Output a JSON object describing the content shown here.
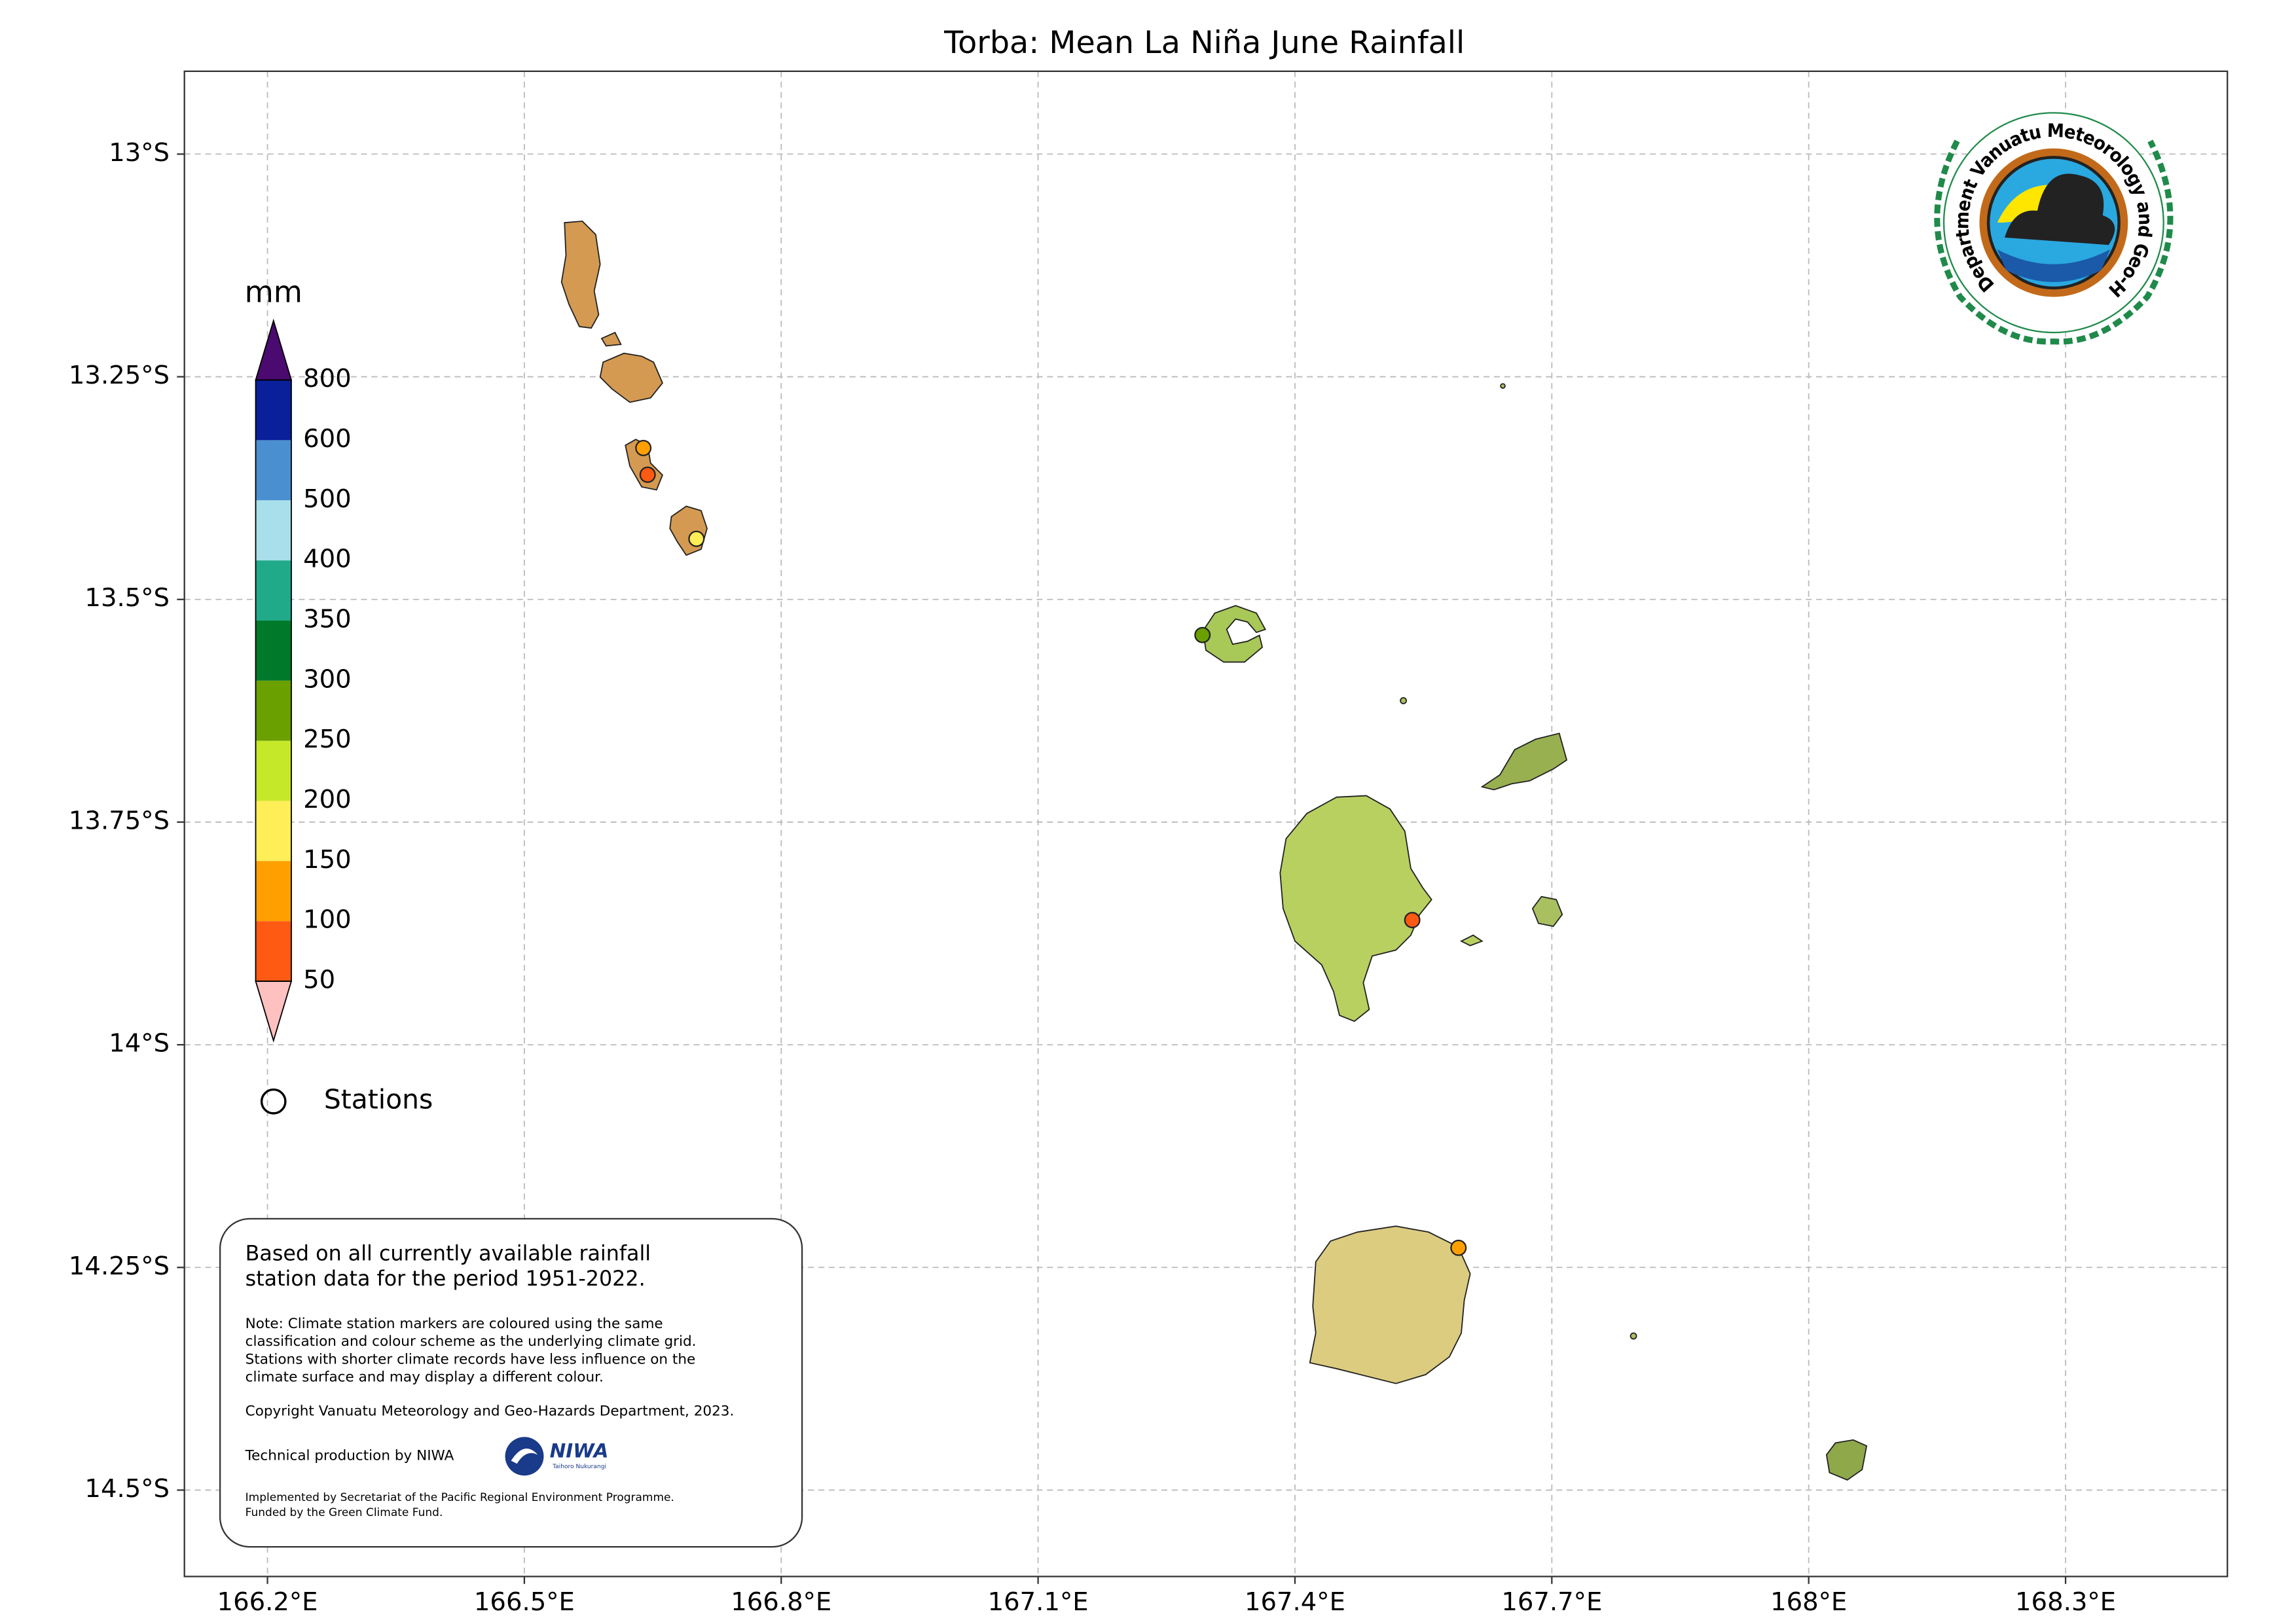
{
  "title": "Torba: Mean La Niña June Rainfall",
  "map": {
    "xlim": [
      166.103,
      168.489
    ],
    "ylim": [
      -14.597,
      -12.907
    ],
    "grid": true,
    "xticks": [
      {
        "value": 166.2,
        "label": "166.2°E"
      },
      {
        "value": 166.5,
        "label": "166.5°E"
      },
      {
        "value": 166.8,
        "label": "166.8°E"
      },
      {
        "value": 167.1,
        "label": "167.1°E"
      },
      {
        "value": 167.4,
        "label": "167.4°E"
      },
      {
        "value": 167.7,
        "label": "167.7°E"
      },
      {
        "value": 168.0,
        "label": "168°E"
      },
      {
        "value": 168.3,
        "label": "168.3°E"
      }
    ],
    "yticks": [
      {
        "value": -13,
        "label": "13°S"
      },
      {
        "value": -13.25,
        "label": "13.25°S"
      },
      {
        "value": -13.5,
        "label": "13.5°S"
      },
      {
        "value": -13.75,
        "label": "13.75°S"
      },
      {
        "value": -14,
        "label": "14°S"
      },
      {
        "value": -14.25,
        "label": "14.25°S"
      },
      {
        "value": -14.5,
        "label": "14.5°S"
      }
    ]
  },
  "colorbar": {
    "label": "mm",
    "levels": [
      50,
      100,
      150,
      200,
      250,
      300,
      350,
      400,
      500,
      600,
      800
    ],
    "colors": [
      "#ff5a14",
      "#ffa000",
      "#ffee58",
      "#c5e829",
      "#6aa000",
      "#007a2a",
      "#20aa8a",
      "#a8dfea",
      "#4a90d0",
      "#0a1f9a"
    ],
    "under_color": "#ffc0c0",
    "over_color": "#4a0a70"
  },
  "stations": {
    "label": "Stations",
    "points": [
      {
        "lon": 166.639,
        "lat": -13.33,
        "color": "#ffa000"
      },
      {
        "lon": 166.644,
        "lat": -13.36,
        "color": "#ff5a14"
      },
      {
        "lon": 166.701,
        "lat": -13.432,
        "color": "#ffee58"
      },
      {
        "lon": 167.292,
        "lat": -13.54,
        "color": "#6aa000"
      },
      {
        "lon": 167.537,
        "lat": -13.86,
        "color": "#ff5a14"
      },
      {
        "lon": 167.591,
        "lat": -14.228,
        "color": "#ffa000"
      }
    ]
  },
  "note": {
    "intro": [
      "Based on all currently available rainfall",
      "station data for the period 1951-2022."
    ],
    "details": [
      "Note: Climate station markers are coloured using the same",
      "classification and colour scheme as the underlying climate grid.",
      "Stations with shorter climate records have less influence on the",
      "climate surface and may display a different colour."
    ],
    "copyright": "Copyright Vanuatu Meteorology and Geo-Hazards Department, 2023.",
    "credit": "Technical production by NIWA",
    "footer": [
      "Implemented by Secretariat of the Pacific Regional Environment Programme.",
      "Funded by the Green Climate Fund."
    ]
  },
  "logo": {
    "text": "Department Vanuatu Meteorology and Geo-Hazards"
  },
  "niwa": {
    "name": "NIWA",
    "tagline": "Taihoro Nukurangi"
  }
}
